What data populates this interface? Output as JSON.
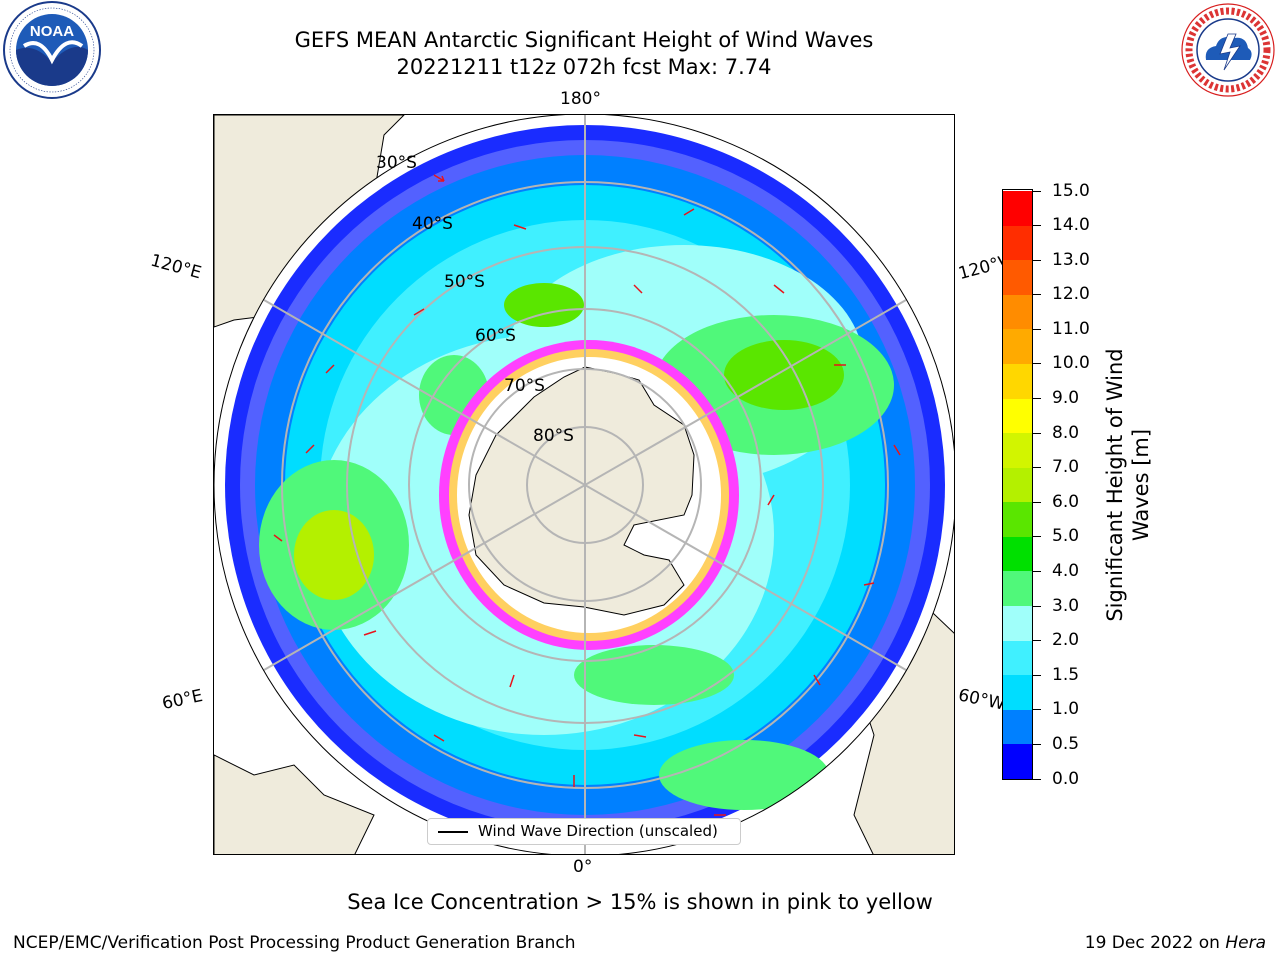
{
  "header": {
    "title_line1": "GEFS MEAN Antarctic Significant Height of Wind Waves",
    "title_line2": "20221211 t12z 072h fcst   Max: 7.74",
    "left_logo_text": "NOAA",
    "left_logo_ring_text": "NATIONAL OCEANIC AND ATMOSPHERIC ADMINISTRATION · U.S. DEPARTMENT OF COMMERCE",
    "right_logo_ring_text": "NATIONAL WEATHER SERVICE"
  },
  "map": {
    "projection": "south-polar-stereographic",
    "lon_labels": {
      "top": "180°",
      "bottom": "0°",
      "left_upper": "120°E",
      "left_lower": "60°E",
      "right_upper": "120°W",
      "right_lower": "60°W"
    },
    "lat_labels": [
      "30°S",
      "40°S",
      "50°S",
      "60°S",
      "70°S",
      "80°S"
    ],
    "land_color": "#efebdc",
    "arrow_color": "#e8141b",
    "ice_note_colors": [
      "#ff40ff",
      "#ffd060"
    ],
    "legend_label": "Wind Wave Direction (unscaled)"
  },
  "colorbar": {
    "title": "Significant Height of Wind Waves [m]",
    "ticks": [
      "0.0",
      "0.5",
      "1.0",
      "1.5",
      "2.0",
      "3.0",
      "4.0",
      "5.0",
      "6.0",
      "7.0",
      "8.0",
      "9.0",
      "10.0",
      "11.0",
      "12.0",
      "13.0",
      "14.0",
      "15.0"
    ],
    "colors": [
      "#0000ff",
      "#0080ff",
      "#00ddff",
      "#40f0ff",
      "#a0fffa",
      "#50f87a",
      "#00e000",
      "#5ae600",
      "#b4f000",
      "#d2f500",
      "#ffff00",
      "#ffd700",
      "#ffaa00",
      "#ff8c00",
      "#ff5a00",
      "#ff2d00",
      "#ff0000"
    ]
  },
  "footer": {
    "ice_note": "Sea Ice Concentration > 15% is shown in pink to yellow",
    "left": "NCEP/EMC/Verification Post Processing Product Generation Branch",
    "right_date": "19 Dec 2022 on",
    "right_host": "Hera"
  }
}
